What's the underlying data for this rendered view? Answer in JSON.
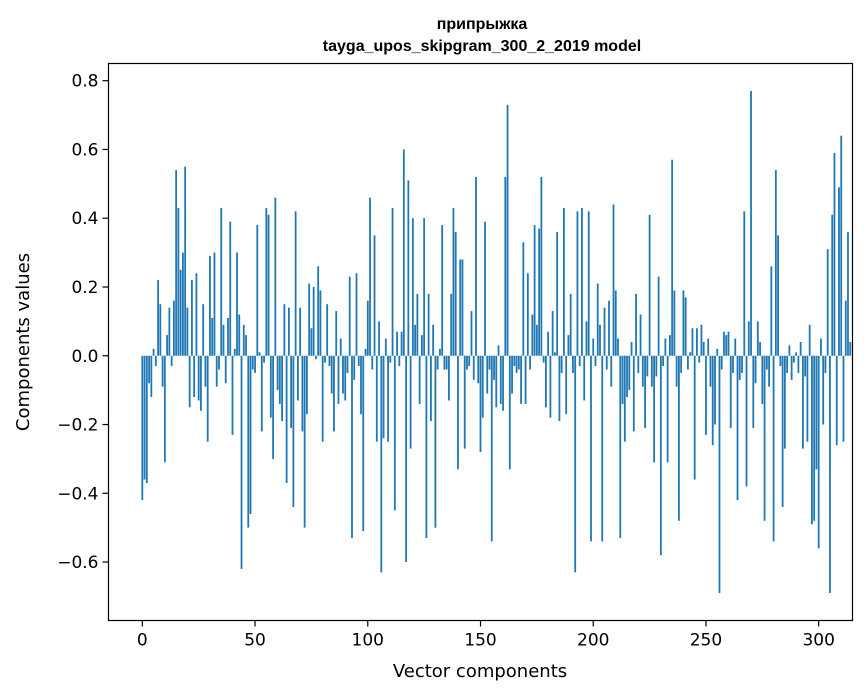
{
  "chart_data": {
    "type": "bar",
    "title_line1": "припрыжка",
    "title_line2": "tayga_upos_skipgram_300_2_2019 model",
    "xlabel": "Vector components",
    "ylabel": "Components values",
    "xlim": [
      -15,
      315
    ],
    "ylim": [
      -0.77,
      0.85
    ],
    "xticks": [
      0,
      50,
      100,
      150,
      200,
      250,
      300
    ],
    "xtick_labels": [
      "0",
      "50",
      "100",
      "150",
      "200",
      "250",
      "300"
    ],
    "yticks": [
      -0.6,
      -0.4,
      -0.2,
      0.0,
      0.2,
      0.4,
      0.6,
      0.8
    ],
    "ytick_labels": [
      "−0.6",
      "−0.4",
      "−0.2",
      "0.0",
      "0.2",
      "0.4",
      "0.6",
      "0.8"
    ],
    "bar_color": "#1f77b4",
    "values": [
      -0.42,
      -0.36,
      -0.37,
      -0.08,
      -0.12,
      0.02,
      -0.03,
      0.22,
      0.15,
      -0.09,
      -0.31,
      0.06,
      0.14,
      -0.03,
      0.16,
      0.54,
      0.43,
      0.25,
      0.3,
      0.55,
      0.14,
      -0.15,
      0.22,
      -0.12,
      0.24,
      -0.13,
      -0.16,
      0.15,
      -0.09,
      -0.25,
      0.29,
      0.11,
      0.3,
      -0.09,
      -0.04,
      0.43,
      0.09,
      -0.08,
      0.11,
      0.39,
      -0.23,
      0.02,
      0.3,
      0.12,
      -0.62,
      0.09,
      0.06,
      -0.5,
      -0.46,
      -0.04,
      -0.05,
      0.38,
      0.01,
      -0.22,
      -0.02,
      0.43,
      0.41,
      -0.18,
      -0.3,
      0.46,
      -0.1,
      -0.14,
      -0.19,
      0.15,
      -0.37,
      0.14,
      -0.21,
      -0.44,
      0.42,
      -0.13,
      0.14,
      -0.22,
      -0.5,
      -0.17,
      0.21,
      0.08,
      0.2,
      -0.01,
      0.26,
      0.19,
      -0.25,
      -0.02,
      0.15,
      -0.03,
      -0.11,
      -0.22,
      0.13,
      -0.14,
      0.05,
      -0.11,
      -0.13,
      -0.05,
      0.23,
      -0.53,
      -0.07,
      0.24,
      -0.03,
      -0.17,
      -0.51,
      0.02,
      0.16,
      0.46,
      -0.04,
      0.35,
      -0.25,
      0.1,
      -0.63,
      -0.24,
      0.05,
      -0.25,
      -0.02,
      0.43,
      -0.45,
      0.07,
      -0.03,
      0.07,
      0.6,
      -0.6,
      0.51,
      -0.27,
      0.4,
      0.09,
      0.18,
      -0.14,
      0.06,
      0.4,
      -0.53,
      0.18,
      -0.19,
      0.09,
      -0.5,
      -0.04,
      0.02,
      0.38,
      -0.04,
      -0.04,
      -0.13,
      0.18,
      0.43,
      0.36,
      -0.33,
      0.28,
      0.28,
      -0.27,
      -0.04,
      -0.03,
      0.13,
      -0.07,
      0.52,
      -0.08,
      -0.28,
      -0.18,
      0.39,
      -0.11,
      -0.04,
      -0.54,
      -0.07,
      -0.15,
      0.03,
      -0.14,
      -0.16,
      0.52,
      0.73,
      -0.33,
      -0.11,
      -0.03,
      -0.05,
      -0.04,
      -0.14,
      0.33,
      -0.14,
      0.24,
      -0.04,
      0.12,
      0.38,
      0.09,
      0.37,
      0.52,
      -0.02,
      -0.15,
      0.07,
      -0.18,
      0.13,
      0.01,
      0.36,
      -0.19,
      -0.05,
      0.43,
      -0.17,
      0.06,
      0.18,
      -0.05,
      -0.63,
      0.42,
      -0.03,
      0.43,
      -0.13,
      0.1,
      0.42,
      -0.54,
      0.05,
      -0.03,
      0.21,
      0.09,
      -0.54,
      0.14,
      -0.04,
      0.16,
      -0.09,
      0.44,
      0.19,
      0.05,
      -0.53,
      -0.14,
      -0.25,
      -0.12,
      -0.1,
      0.04,
      -0.22,
      0.18,
      -0.05,
      0.12,
      -0.09,
      -0.21,
      -0.06,
      0.41,
      -0.09,
      -0.31,
      -0.06,
      0.23,
      -0.58,
      -0.03,
      0.05,
      -0.31,
      0.06,
      0.57,
      0.19,
      -0.09,
      -0.48,
      -0.05,
      0.19,
      0.17,
      -0.04,
      0.01,
      0.08,
      -0.36,
      0.08,
      -0.02,
      0.09,
      0.04,
      -0.23,
      0.05,
      -0.09,
      -0.26,
      -0.2,
      0.02,
      -0.69,
      -0.04,
      0.07,
      0.06,
      0.07,
      -0.21,
      -0.05,
      0.05,
      -0.42,
      -0.07,
      -0.05,
      0.42,
      -0.38,
      0.1,
      0.77,
      -0.21,
      -0.08,
      0.1,
      0.04,
      -0.14,
      -0.48,
      -0.04,
      -0.09,
      0.26,
      -0.54,
      0.54,
      0.35,
      -0.03,
      -0.44,
      -0.27,
      -0.05,
      0.03,
      -0.07,
      -0.02,
      0.01,
      -0.05,
      0.04,
      -0.27,
      -0.06,
      -0.25,
      0.09,
      -0.49,
      -0.48,
      -0.33,
      -0.56,
      0.05,
      -0.2,
      -0.05,
      0.31,
      -0.69,
      0.41,
      0.59,
      -0.26,
      0.49,
      0.64,
      -0.25,
      0.16,
      0.36,
      0.04
    ]
  }
}
